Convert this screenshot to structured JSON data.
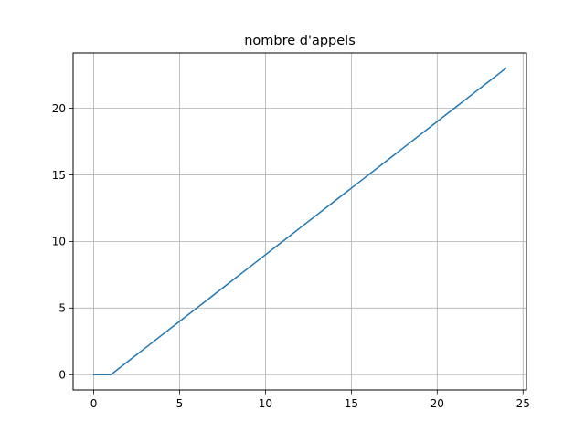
{
  "chart_data": {
    "type": "line",
    "title": "nombre d'appels",
    "xlabel": "",
    "ylabel": "",
    "xlim": [
      -1.2,
      25.2
    ],
    "ylim": [
      -1.15,
      24.15
    ],
    "grid": true,
    "x_ticks": [
      0,
      5,
      10,
      15,
      20,
      25
    ],
    "y_ticks": [
      0,
      5,
      10,
      15,
      20
    ],
    "series": [
      {
        "name": "",
        "color": "#1f77b4",
        "x": [
          0,
          1,
          2,
          3,
          4,
          5,
          6,
          7,
          8,
          9,
          10,
          11,
          12,
          13,
          14,
          15,
          16,
          17,
          18,
          19,
          20,
          21,
          22,
          23,
          24
        ],
        "y": [
          0,
          0,
          1,
          2,
          3,
          4,
          5,
          6,
          7,
          8,
          9,
          10,
          11,
          12,
          13,
          14,
          15,
          16,
          17,
          18,
          19,
          20,
          21,
          22,
          23
        ]
      }
    ]
  }
}
